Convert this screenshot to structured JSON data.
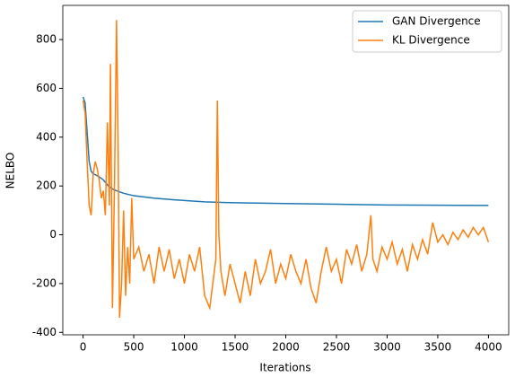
{
  "chart_data": {
    "type": "line",
    "xlabel": "Iterations",
    "ylabel": "NELBO",
    "xlim": [
      -200,
      4200
    ],
    "ylim": [
      -410,
      940
    ],
    "xticks": [
      0,
      500,
      1000,
      1500,
      2000,
      2500,
      3000,
      3500,
      4000
    ],
    "yticks": [
      -400,
      -200,
      0,
      200,
      400,
      600,
      800
    ],
    "legend": "upper right",
    "series": [
      {
        "name": "GAN Divergence",
        "color": "#1f77b4",
        "x": [
          0,
          20,
          40,
          60,
          80,
          100,
          150,
          200,
          250,
          300,
          400,
          500,
          700,
          900,
          1200,
          1500,
          2000,
          2500,
          3000,
          3500,
          4000
        ],
        "values": [
          565,
          540,
          420,
          300,
          260,
          250,
          240,
          225,
          200,
          185,
          170,
          160,
          150,
          143,
          135,
          131,
          128,
          125,
          122,
          121,
          120
        ]
      },
      {
        "name": "KL Divergence",
        "color": "#ff7f0e",
        "x": [
          0,
          20,
          40,
          60,
          80,
          100,
          120,
          140,
          160,
          180,
          200,
          220,
          240,
          260,
          270,
          290,
          310,
          330,
          345,
          360,
          380,
          400,
          420,
          440,
          460,
          480,
          500,
          550,
          600,
          650,
          700,
          750,
          800,
          850,
          900,
          950,
          1000,
          1050,
          1100,
          1150,
          1200,
          1250,
          1280,
          1310,
          1325,
          1340,
          1360,
          1400,
          1450,
          1500,
          1550,
          1600,
          1650,
          1700,
          1750,
          1800,
          1850,
          1900,
          1950,
          2000,
          2050,
          2100,
          2150,
          2200,
          2250,
          2300,
          2350,
          2400,
          2450,
          2500,
          2550,
          2600,
          2650,
          2700,
          2750,
          2800,
          2840,
          2860,
          2900,
          2950,
          3000,
          3050,
          3100,
          3150,
          3200,
          3250,
          3300,
          3350,
          3400,
          3450,
          3500,
          3550,
          3600,
          3650,
          3700,
          3750,
          3800,
          3850,
          3900,
          3950,
          4000
        ],
        "values": [
          550,
          500,
          300,
          120,
          80,
          250,
          300,
          270,
          220,
          150,
          180,
          80,
          460,
          120,
          700,
          -300,
          200,
          880,
          400,
          -340,
          -200,
          100,
          -250,
          -50,
          -200,
          150,
          -100,
          -50,
          -150,
          -80,
          -200,
          -50,
          -150,
          -60,
          -180,
          -100,
          -200,
          -80,
          -150,
          -50,
          -250,
          -300,
          -200,
          -100,
          550,
          0,
          -150,
          -250,
          -120,
          -200,
          -280,
          -150,
          -250,
          -100,
          -200,
          -150,
          -60,
          -200,
          -120,
          -180,
          -80,
          -150,
          -200,
          -100,
          -220,
          -280,
          -150,
          -50,
          -150,
          -100,
          -200,
          -60,
          -120,
          -40,
          -150,
          -80,
          80,
          -100,
          -150,
          -50,
          -100,
          -30,
          -120,
          -60,
          -150,
          -40,
          -100,
          -20,
          -80,
          50,
          -30,
          0,
          -40,
          10,
          -20,
          20,
          -10,
          30,
          0,
          30,
          -30
        ]
      }
    ]
  }
}
